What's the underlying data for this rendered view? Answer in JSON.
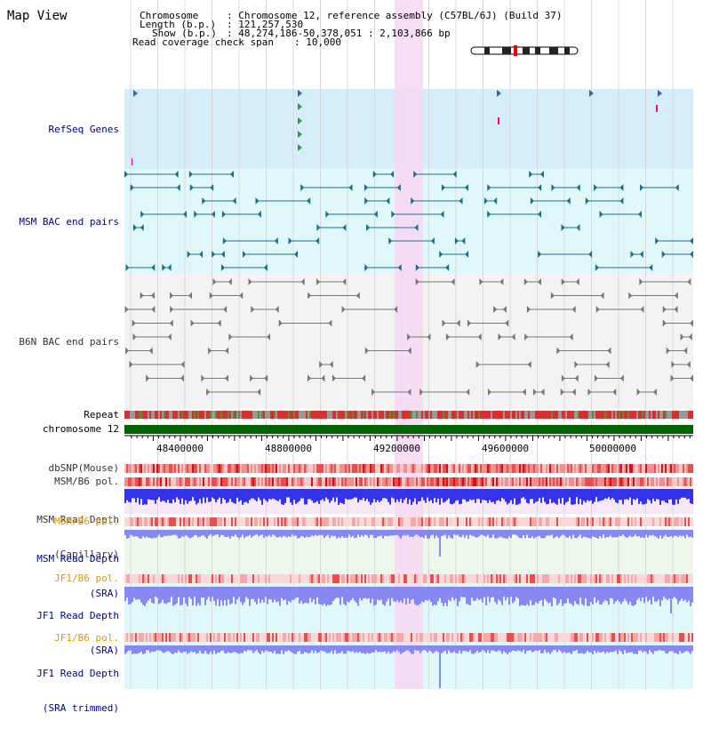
{
  "view": {
    "title": "Map View",
    "info": {
      "chromosome_label": "Chromosome",
      "chromosome_value": ": Chromosome 12, reference assembly (C57BL/6J) (Build 37)",
      "length_label": "Length (b.p.)",
      "length_value": ": 121,257,530",
      "show_label": "Show (b.p.)",
      "show_value": ": 48,274,186-50,378,051 : 2,103,866 bp",
      "read_coverage_label": "Read coverage check span",
      "read_coverage_value": ": 10,000"
    }
  },
  "axis": {
    "ticks": [
      "48400000",
      "48800000",
      "49200000",
      "49600000",
      "50000000"
    ]
  },
  "tracks": {
    "refseq": "RefSeq Genes",
    "msm_bac": "MSM BAC end pairs",
    "b6n_bac": "B6N BAC end pairs",
    "repeat": "Repeat",
    "chromosome": "chromosome 12",
    "dbsnp": "dbSNP(Mouse)",
    "msm_b6_pol_1": "MSM/B6 pol.",
    "msm_read_depth_cap_1": "MSM Read Depth",
    "msm_read_depth_cap_2": "(Capillary)",
    "msm_b6_pol_2": "MSM/B6 pol.",
    "msm_read_depth_sra_1": "MSM Read Depth",
    "msm_read_depth_sra_2": "(SRA)",
    "jf1_b6_pol_1": "JF1/B6 pol.",
    "jf1_read_depth_sra_1": "JF1 Read Depth",
    "jf1_read_depth_sra_2": "(SRA)",
    "jf1_b6_pol_2": "JF1/B6 pol.",
    "jf1_read_depth_trim_1": "JF1 Read Depth",
    "jf1_read_depth_trim_2": "(SRA trimmed)"
  },
  "colors": {
    "refseq_bg": "#d6eefa",
    "msm_bg": "#e0f8fa",
    "b6n_bg": "#f3f3f3",
    "highlight": "#f7d8f2",
    "chromosome_bar": "#006400",
    "depth_blue": "#3333ee",
    "depth_light": "#8888f2"
  }
}
